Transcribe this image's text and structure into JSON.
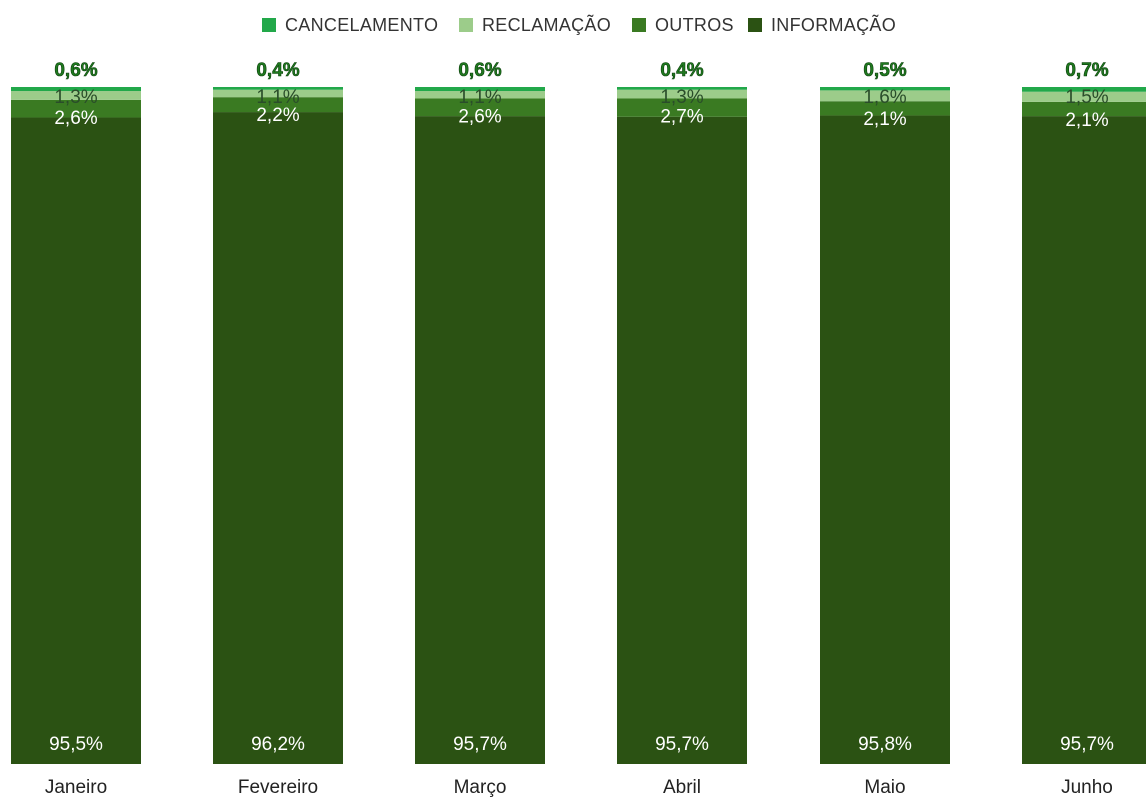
{
  "chart_data": {
    "type": "bar",
    "stacked": true,
    "normalized_percent": true,
    "categories": [
      "Janeiro",
      "Fevereiro",
      "Março",
      "Abril",
      "Maio",
      "Junho"
    ],
    "series": [
      {
        "name": "INFORMAÇÃO",
        "color": "#2b5213",
        "values": [
          95.5,
          96.2,
          95.7,
          95.7,
          95.8,
          95.7
        ],
        "labels": [
          "95,5%",
          "96,2%",
          "95,7%",
          "95,7%",
          "95,8%",
          "95,7%"
        ]
      },
      {
        "name": "OUTROS",
        "color": "#3a7a22",
        "values": [
          2.6,
          2.2,
          2.6,
          2.7,
          2.1,
          2.1
        ],
        "labels": [
          "2,6%",
          "2,2%",
          "2,6%",
          "2,7%",
          "2,1%",
          "2,1%"
        ]
      },
      {
        "name": "RECLAMAÇÃO",
        "color": "#9ccc8a",
        "values": [
          1.3,
          1.1,
          1.1,
          1.3,
          1.6,
          1.5
        ],
        "labels": [
          "1,3%",
          "1,1%",
          "1,1%",
          "1,3%",
          "1,6%",
          "1,5%"
        ]
      },
      {
        "name": "CANCELAMENTO",
        "color": "#22a84a",
        "values": [
          0.6,
          0.4,
          0.6,
          0.4,
          0.5,
          0.7
        ],
        "labels": [
          "0,6%",
          "0,4%",
          "0,6%",
          "0,4%",
          "0,5%",
          "0,7%"
        ]
      }
    ],
    "legend_order": [
      "CANCELAMENTO",
      "RECLAMAÇÃO",
      "OUTROS",
      "INFORMAÇÃO"
    ],
    "legend_position": "top",
    "ylim": [
      0,
      100
    ],
    "grid": false
  }
}
